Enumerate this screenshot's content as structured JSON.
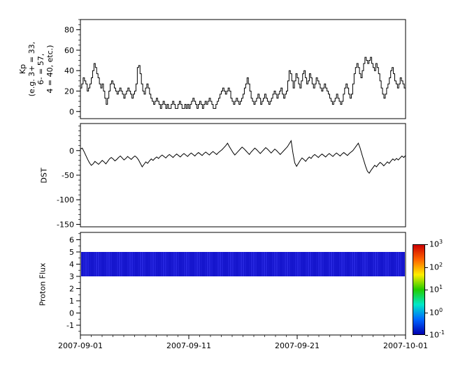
{
  "figure": {
    "background": "#ffffff",
    "line_color": "#000000"
  },
  "x_axis": {
    "tick_labels": [
      "2007-09-01",
      "2007-09-11",
      "2007-09-21",
      "2007-10-01"
    ],
    "tick_positions_days": [
      0,
      10,
      20,
      30
    ],
    "total_days": 30,
    "minor_tick_days": 1
  },
  "chart_data": [
    {
      "type": "line",
      "name": "kp",
      "style": "step",
      "ylabel_lines": [
        "Kp",
        "(e.g. 3+ = 33,",
        "6- = 57,",
        "4 = 40, etc.)"
      ],
      "ylim": [
        -7,
        90
      ],
      "yticks": [
        0,
        20,
        40,
        60,
        80
      ],
      "minor_step": 5,
      "sample_hours": 3,
      "values": [
        23,
        27,
        33,
        30,
        27,
        20,
        23,
        27,
        33,
        40,
        47,
        43,
        37,
        33,
        27,
        23,
        27,
        20,
        13,
        7,
        13,
        20,
        27,
        30,
        27,
        23,
        20,
        17,
        20,
        23,
        20,
        17,
        13,
        17,
        20,
        23,
        20,
        17,
        13,
        17,
        20,
        27,
        43,
        45,
        37,
        27,
        20,
        17,
        23,
        27,
        23,
        17,
        13,
        10,
        7,
        10,
        13,
        10,
        7,
        3,
        7,
        10,
        7,
        3,
        7,
        3,
        3,
        7,
        10,
        7,
        3,
        3,
        7,
        10,
        7,
        3,
        3,
        7,
        3,
        7,
        3,
        7,
        10,
        13,
        10,
        7,
        3,
        7,
        10,
        7,
        3,
        7,
        10,
        7,
        10,
        13,
        10,
        7,
        3,
        3,
        7,
        10,
        13,
        17,
        20,
        23,
        20,
        17,
        20,
        23,
        20,
        13,
        10,
        7,
        10,
        13,
        10,
        7,
        10,
        13,
        17,
        23,
        27,
        33,
        27,
        20,
        13,
        10,
        7,
        10,
        13,
        17,
        13,
        7,
        10,
        13,
        17,
        13,
        10,
        7,
        10,
        13,
        17,
        20,
        17,
        13,
        17,
        20,
        23,
        17,
        13,
        17,
        20,
        30,
        40,
        37,
        30,
        23,
        30,
        37,
        33,
        27,
        23,
        30,
        37,
        40,
        33,
        27,
        30,
        37,
        33,
        27,
        23,
        27,
        33,
        30,
        27,
        23,
        20,
        23,
        27,
        23,
        20,
        17,
        13,
        10,
        7,
        10,
        13,
        17,
        13,
        10,
        7,
        10,
        17,
        23,
        27,
        23,
        17,
        13,
        17,
        27,
        37,
        43,
        47,
        43,
        37,
        33,
        40,
        47,
        53,
        50,
        47,
        50,
        53,
        47,
        43,
        40,
        47,
        43,
        37,
        30,
        23,
        17,
        13,
        17,
        23,
        27,
        33,
        40,
        43,
        37,
        30,
        27,
        23,
        27,
        33,
        30,
        27,
        23
      ]
    },
    {
      "type": "line",
      "name": "dst",
      "style": "linear",
      "ylabel_lines": [
        "DST"
      ],
      "ylim": [
        -155,
        55
      ],
      "yticks": [
        -150,
        -100,
        -50,
        0
      ],
      "minor_step": 10,
      "sample_hours": 4,
      "values": [
        3,
        5,
        -2,
        -10,
        -18,
        -25,
        -30,
        -27,
        -22,
        -25,
        -28,
        -24,
        -20,
        -23,
        -27,
        -22,
        -17,
        -14,
        -17,
        -21,
        -18,
        -14,
        -11,
        -15,
        -19,
        -16,
        -12,
        -15,
        -18,
        -14,
        -11,
        -14,
        -19,
        -26,
        -33,
        -28,
        -23,
        -26,
        -21,
        -17,
        -20,
        -16,
        -13,
        -16,
        -12,
        -9,
        -12,
        -15,
        -11,
        -8,
        -11,
        -14,
        -10,
        -7,
        -10,
        -13,
        -9,
        -6,
        -9,
        -12,
        -8,
        -5,
        -8,
        -11,
        -7,
        -4,
        -7,
        -10,
        -6,
        -3,
        -6,
        -9,
        -5,
        -2,
        -5,
        -8,
        -4,
        -1,
        2,
        6,
        10,
        15,
        8,
        2,
        -4,
        -9,
        -5,
        -1,
        3,
        7,
        4,
        0,
        -4,
        -8,
        -3,
        1,
        5,
        2,
        -2,
        -6,
        -2,
        2,
        6,
        3,
        -1,
        -5,
        -1,
        3,
        0,
        -4,
        -8,
        -4,
        0,
        4,
        8,
        14,
        20,
        -5,
        -25,
        -32,
        -26,
        -20,
        -15,
        -18,
        -22,
        -17,
        -13,
        -16,
        -11,
        -8,
        -11,
        -14,
        -10,
        -7,
        -10,
        -13,
        -9,
        -6,
        -9,
        -12,
        -8,
        -5,
        -8,
        -11,
        -7,
        -4,
        -7,
        -10,
        -6,
        -3,
        0,
        5,
        10,
        15,
        5,
        -8,
        -20,
        -32,
        -42,
        -46,
        -40,
        -35,
        -30,
        -33,
        -28,
        -24,
        -27,
        -31,
        -27,
        -23,
        -26,
        -21,
        -17,
        -20,
        -16,
        -19,
        -15,
        -11,
        -14,
        -10
      ]
    },
    {
      "type": "heatmap",
      "name": "proton-flux",
      "ylabel_lines": [
        "Proton Flux"
      ],
      "ylim": [
        -1.8,
        6.6
      ],
      "yticks": [
        -1,
        0,
        1,
        2,
        3,
        4,
        5,
        6
      ],
      "minor_step": 0.5,
      "band": {
        "y_min": 3,
        "y_max": 5,
        "value_flux": 0.15,
        "color": "#1515cd",
        "streak_color": "#4646ff"
      },
      "colorbar": {
        "scale": "log",
        "min": 0.1,
        "max": 1000,
        "tick_exponents": [
          3,
          2,
          1,
          0,
          -1
        ],
        "colors_top_to_bottom": [
          "#cc0000",
          "#ff6600",
          "#ffee00",
          "#22cc00",
          "#00e8c8",
          "#0066ff",
          "#0000b0"
        ]
      }
    }
  ]
}
